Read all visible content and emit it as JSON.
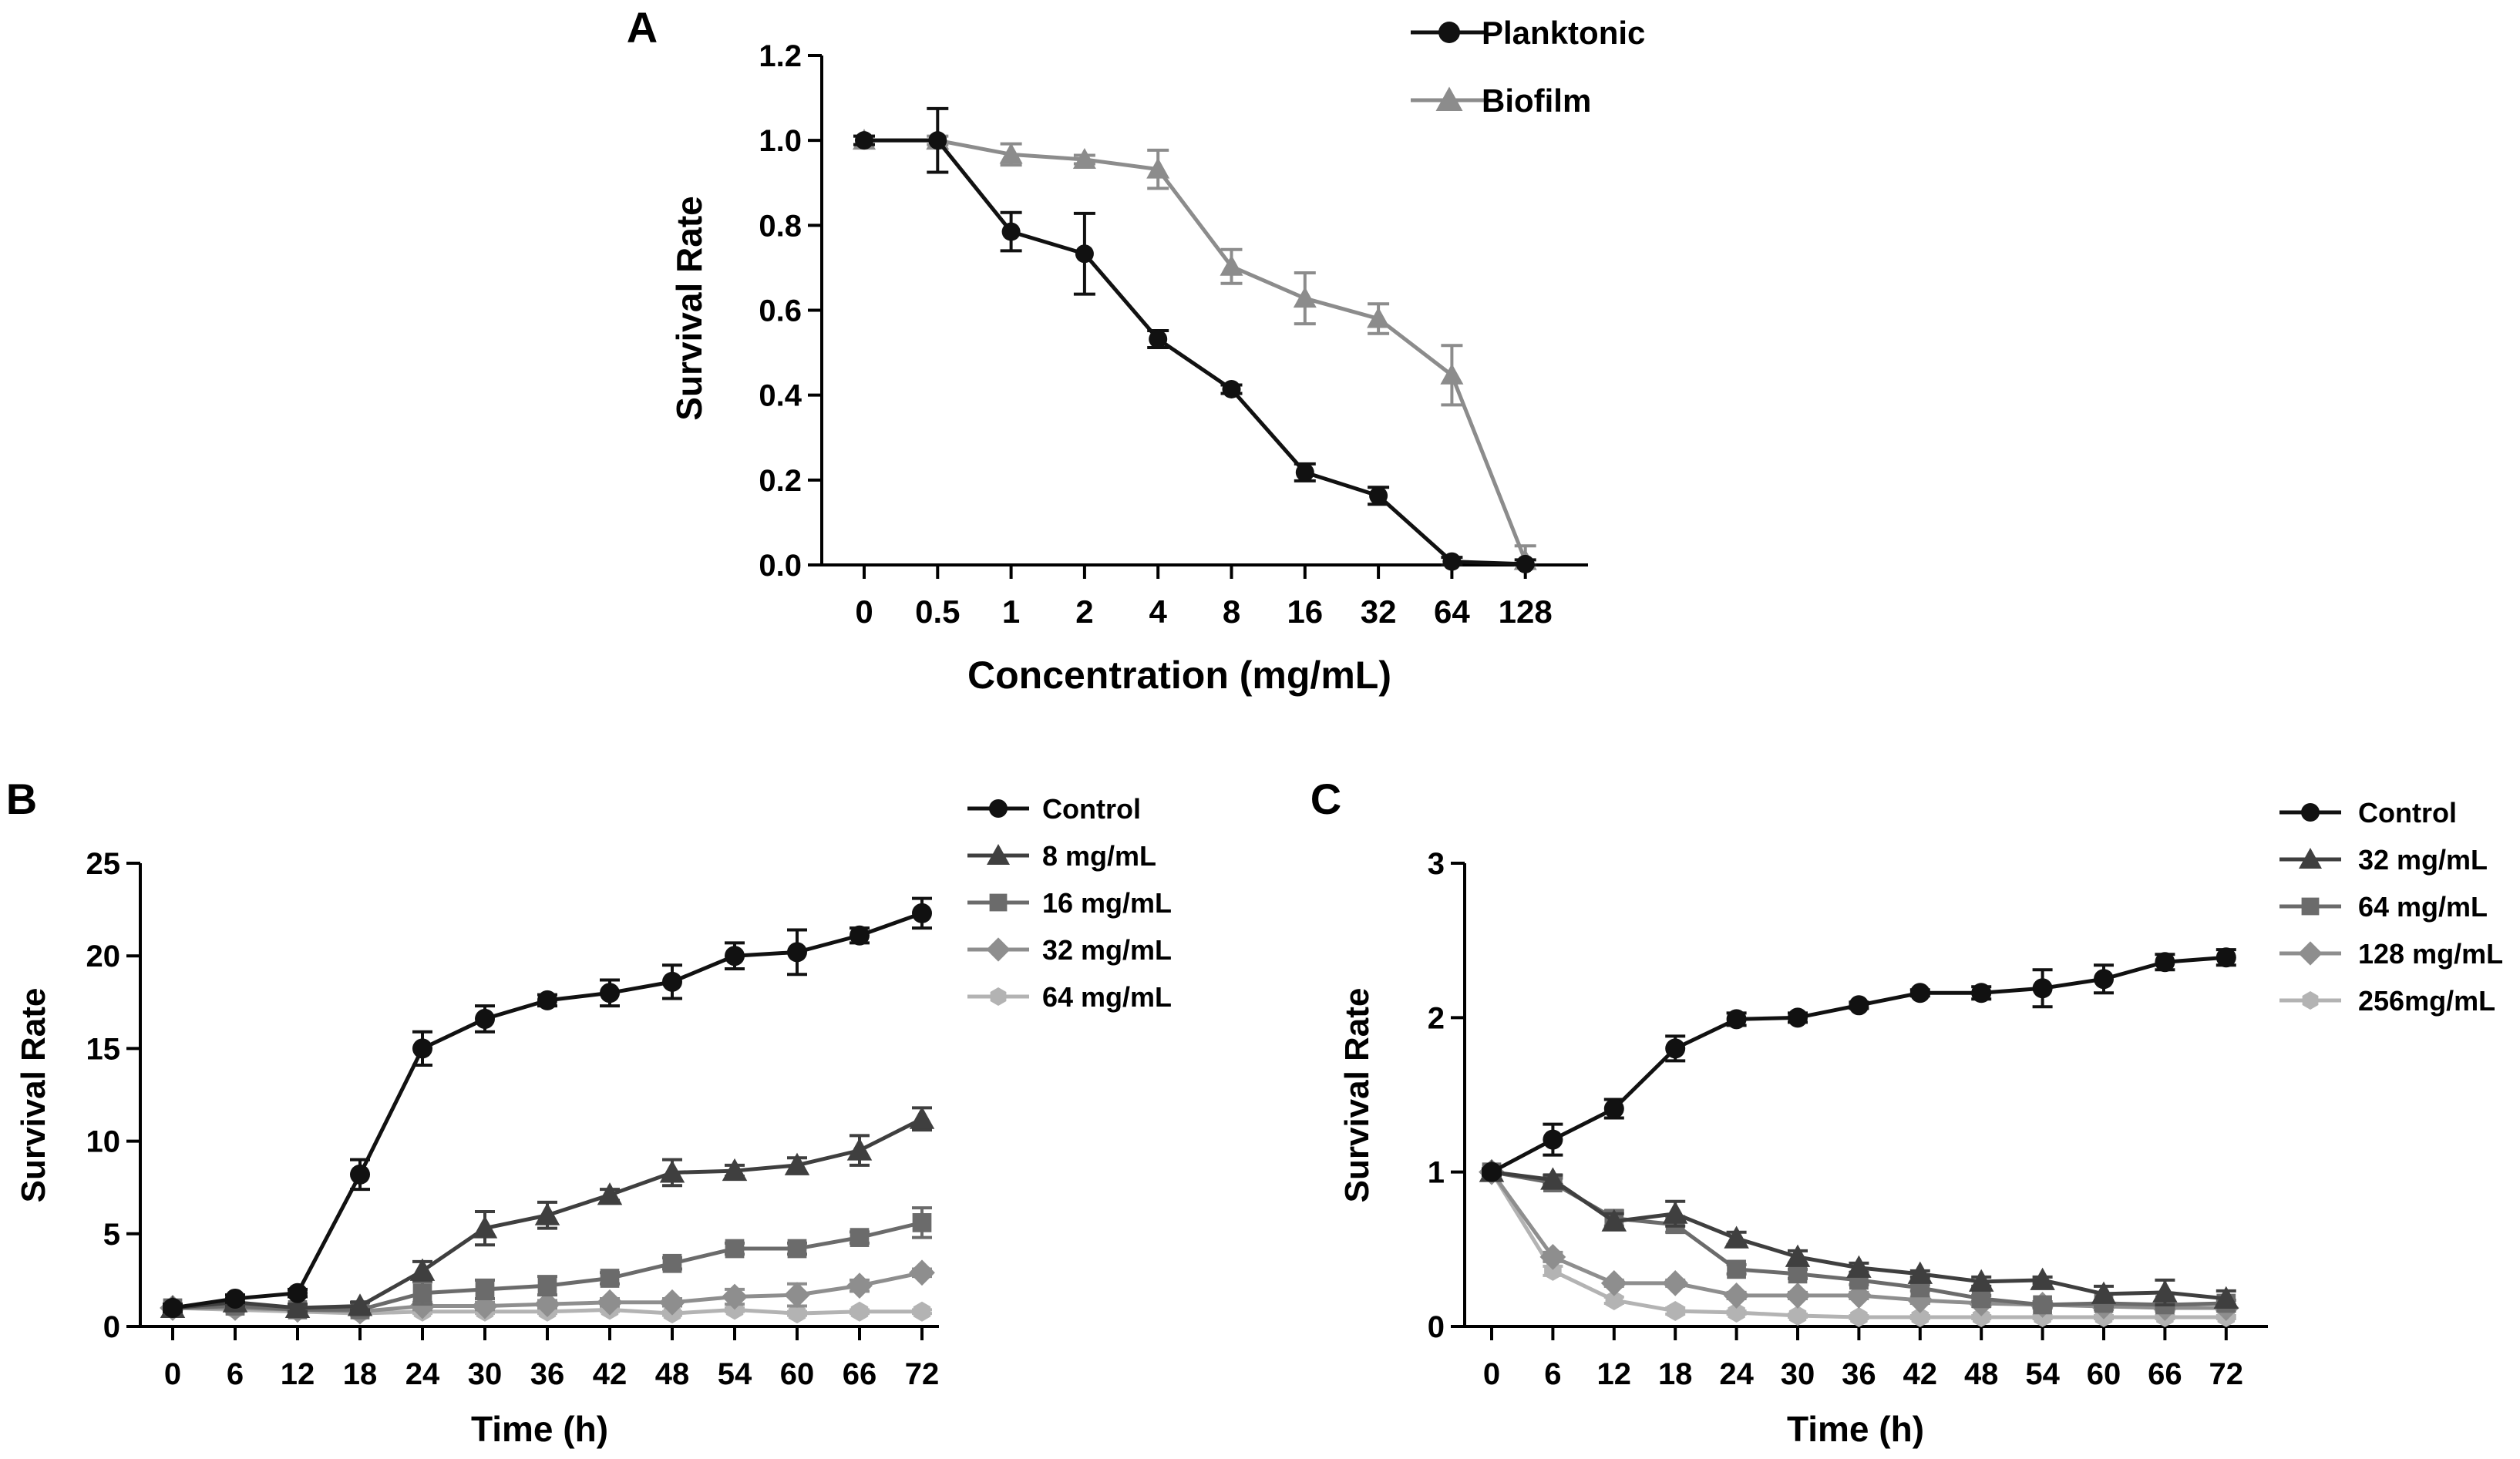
{
  "chart_data": [
    {
      "panel": "A",
      "type": "line",
      "xlabel": "Concentration (mg/mL)",
      "ylabel": "Survival Rate",
      "categories": [
        "0",
        "0.5",
        "1",
        "2",
        "4",
        "8",
        "16",
        "32",
        "64",
        "128"
      ],
      "ylim": [
        0,
        1.2
      ],
      "yticks": [
        0,
        0.2,
        0.4,
        0.6,
        0.8,
        1.0,
        1.2
      ],
      "ytick_labels": [
        "0.0",
        "0.2",
        "0.4",
        "0.6",
        "0.8",
        "1.0",
        "1.2"
      ],
      "series": [
        {
          "name": "Planktonic",
          "marker": "circle",
          "color": "#111111",
          "values": [
            1.0,
            1.0,
            0.785,
            0.733,
            0.532,
            0.414,
            0.218,
            0.163,
            0.008,
            0.002
          ],
          "errors": [
            0.01,
            0.075,
            0.045,
            0.095,
            0.02,
            0.01,
            0.02,
            0.02,
            0.01,
            0.01
          ]
        },
        {
          "name": "Biofilm",
          "marker": "triangle",
          "color": "#8c8c8c",
          "values": [
            1.0,
            1.0,
            0.967,
            0.955,
            0.932,
            0.703,
            0.628,
            0.58,
            0.447,
            0.01
          ],
          "errors": [
            0.01,
            0.01,
            0.025,
            0.01,
            0.045,
            0.04,
            0.06,
            0.035,
            0.07,
            0.035
          ]
        }
      ]
    },
    {
      "panel": "B",
      "type": "line",
      "xlabel": "Time (h)",
      "ylabel": "Survival Rate",
      "categories": [
        "0",
        "6",
        "12",
        "18",
        "24",
        "30",
        "36",
        "42",
        "48",
        "54",
        "60",
        "66",
        "72"
      ],
      "ylim": [
        0,
        25
      ],
      "yticks": [
        0,
        5,
        10,
        15,
        20,
        25
      ],
      "ytick_labels": [
        "0",
        "5",
        "10",
        "15",
        "20",
        "25"
      ],
      "series": [
        {
          "name": "Control",
          "marker": "circle",
          "color": "#111111",
          "values": [
            1.0,
            1.5,
            1.8,
            8.2,
            15.0,
            16.6,
            17.6,
            18.0,
            18.6,
            20.0,
            20.2,
            21.1,
            22.3
          ],
          "errors": [
            0.2,
            0.2,
            0.2,
            0.8,
            0.9,
            0.7,
            0.3,
            0.7,
            0.9,
            0.7,
            1.2,
            0.4,
            0.8
          ]
        },
        {
          "name": "8 mg/mL",
          "marker": "triangle",
          "color": "#3f3f3f",
          "values": [
            1.0,
            1.3,
            1.0,
            1.1,
            3.0,
            5.3,
            6.0,
            7.1,
            8.3,
            8.4,
            8.7,
            9.5,
            11.2
          ],
          "errors": [
            0.2,
            0.2,
            0.2,
            0.2,
            0.5,
            0.9,
            0.7,
            0.3,
            0.7,
            0.3,
            0.4,
            0.8,
            0.6
          ]
        },
        {
          "name": "16 mg/mL",
          "marker": "square",
          "color": "#6b6b6b",
          "values": [
            1.0,
            1.1,
            0.9,
            0.9,
            1.8,
            2.0,
            2.2,
            2.6,
            3.4,
            4.2,
            4.2,
            4.8,
            5.6
          ],
          "errors": [
            0.1,
            0.1,
            0.1,
            0.1,
            0.6,
            0.5,
            0.5,
            0.3,
            0.3,
            0.3,
            0.3,
            0.3,
            0.8
          ]
        },
        {
          "name": "32 mg/mL",
          "marker": "diamond",
          "color": "#8e8e8e",
          "values": [
            1.0,
            1.0,
            0.9,
            0.8,
            1.1,
            1.1,
            1.2,
            1.3,
            1.3,
            1.6,
            1.7,
            2.2,
            2.9
          ],
          "errors": [
            0.1,
            0.1,
            0.1,
            0.1,
            0.2,
            0.2,
            0.2,
            0.2,
            0.2,
            0.4,
            0.6,
            0.3,
            0.2
          ]
        },
        {
          "name": "64 mg/mL",
          "marker": "hexagon",
          "color": "#b3b3b3",
          "values": [
            1.0,
            0.9,
            0.8,
            0.7,
            0.8,
            0.8,
            0.8,
            0.9,
            0.7,
            0.9,
            0.7,
            0.8,
            0.8
          ],
          "errors": [
            0.1,
            0.1,
            0.1,
            0.1,
            0.1,
            0.1,
            0.1,
            0.1,
            0.1,
            0.1,
            0.1,
            0.1,
            0.1
          ]
        }
      ]
    },
    {
      "panel": "C",
      "type": "line",
      "xlabel": "Time (h)",
      "ylabel": "Survival Rate",
      "categories": [
        "0",
        "6",
        "12",
        "18",
        "24",
        "30",
        "36",
        "42",
        "48",
        "54",
        "60",
        "66",
        "72"
      ],
      "ylim": [
        0,
        3
      ],
      "yticks": [
        0,
        1,
        2,
        3
      ],
      "ytick_labels": [
        "0",
        "1",
        "2",
        "3"
      ],
      "series": [
        {
          "name": "Control",
          "marker": "circle",
          "color": "#111111",
          "values": [
            1.0,
            1.21,
            1.41,
            1.8,
            1.99,
            2.0,
            2.08,
            2.16,
            2.16,
            2.19,
            2.25,
            2.36,
            2.39
          ],
          "errors": [
            0.02,
            0.1,
            0.06,
            0.08,
            0.04,
            0.03,
            0.02,
            0.02,
            0.04,
            0.12,
            0.09,
            0.05,
            0.05
          ]
        },
        {
          "name": "32 mg/mL",
          "marker": "triangle",
          "color": "#3f3f3f",
          "values": [
            1.0,
            0.95,
            0.68,
            0.73,
            0.57,
            0.45,
            0.38,
            0.34,
            0.29,
            0.3,
            0.21,
            0.22,
            0.18
          ],
          "errors": [
            0.02,
            0.03,
            0.05,
            0.08,
            0.04,
            0.04,
            0.03,
            0.02,
            0.03,
            0.02,
            0.05,
            0.08,
            0.05
          ]
        },
        {
          "name": "64 mg/mL",
          "marker": "square",
          "color": "#6b6b6b",
          "values": [
            1.0,
            0.93,
            0.7,
            0.66,
            0.37,
            0.34,
            0.3,
            0.25,
            0.18,
            0.14,
            0.15,
            0.14,
            0.15
          ],
          "errors": [
            0.02,
            0.03,
            0.05,
            0.05,
            0.03,
            0.03,
            0.03,
            0.02,
            0.02,
            0.02,
            0.02,
            0.02,
            0.02
          ]
        },
        {
          "name": "128 mg/mL",
          "marker": "diamond",
          "color": "#8e8e8e",
          "values": [
            1.0,
            0.45,
            0.28,
            0.28,
            0.2,
            0.2,
            0.2,
            0.17,
            0.15,
            0.14,
            0.13,
            0.12,
            0.12
          ],
          "errors": [
            0.02,
            0.03,
            0.02,
            0.02,
            0.02,
            0.02,
            0.02,
            0.02,
            0.02,
            0.02,
            0.02,
            0.02,
            0.02
          ]
        },
        {
          "name": "256mg/mL",
          "marker": "hexagon",
          "color": "#b3b3b3",
          "values": [
            1.0,
            0.36,
            0.17,
            0.1,
            0.09,
            0.07,
            0.06,
            0.06,
            0.06,
            0.06,
            0.06,
            0.06,
            0.06
          ],
          "errors": [
            0.02,
            0.03,
            0.02,
            0.02,
            0.01,
            0.01,
            0.01,
            0.01,
            0.01,
            0.01,
            0.01,
            0.01,
            0.01
          ]
        }
      ]
    }
  ]
}
